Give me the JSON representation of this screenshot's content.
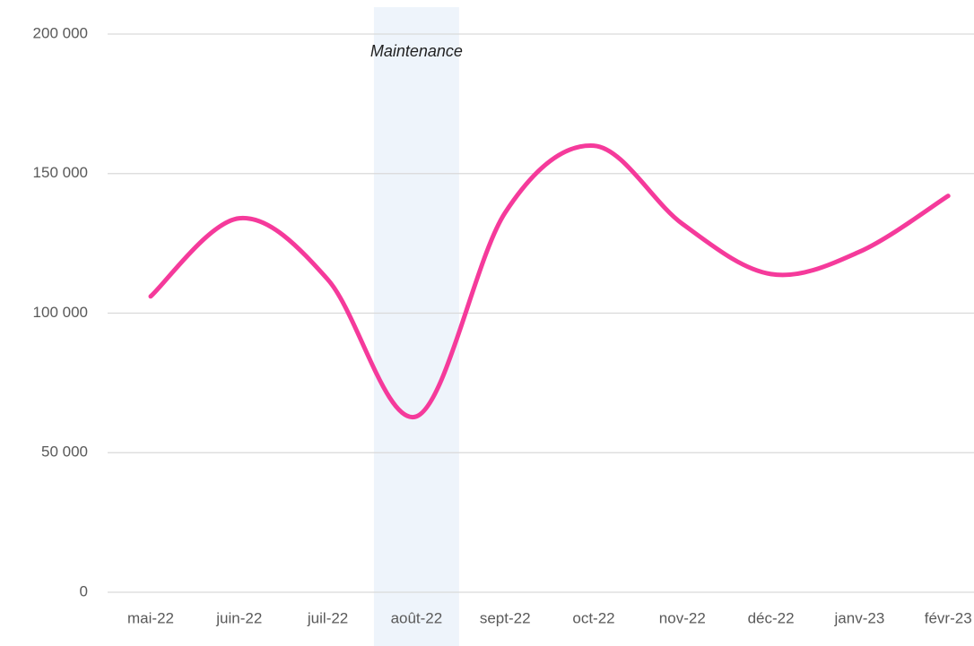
{
  "chart_data": {
    "type": "line",
    "categories": [
      "mai-22",
      "juin-22",
      "juil-22",
      "août-22",
      "sept-22",
      "oct-22",
      "nov-22",
      "déc-22",
      "janv-23",
      "févr-23"
    ],
    "values": [
      106000,
      134000,
      112000,
      63000,
      136000,
      160000,
      132000,
      114000,
      122000,
      142000
    ],
    "color": "#f53a9b",
    "ylim": [
      0,
      200000
    ],
    "yticks": [
      {
        "value": 0,
        "label": "0"
      },
      {
        "value": 50000,
        "label": "50 000"
      },
      {
        "value": 100000,
        "label": "100 000"
      },
      {
        "value": 150000,
        "label": "150 000"
      },
      {
        "value": 200000,
        "label": "200 000"
      }
    ],
    "grid": true,
    "annotations": [
      {
        "text": "Maintenance",
        "category": "août-22"
      }
    ]
  }
}
